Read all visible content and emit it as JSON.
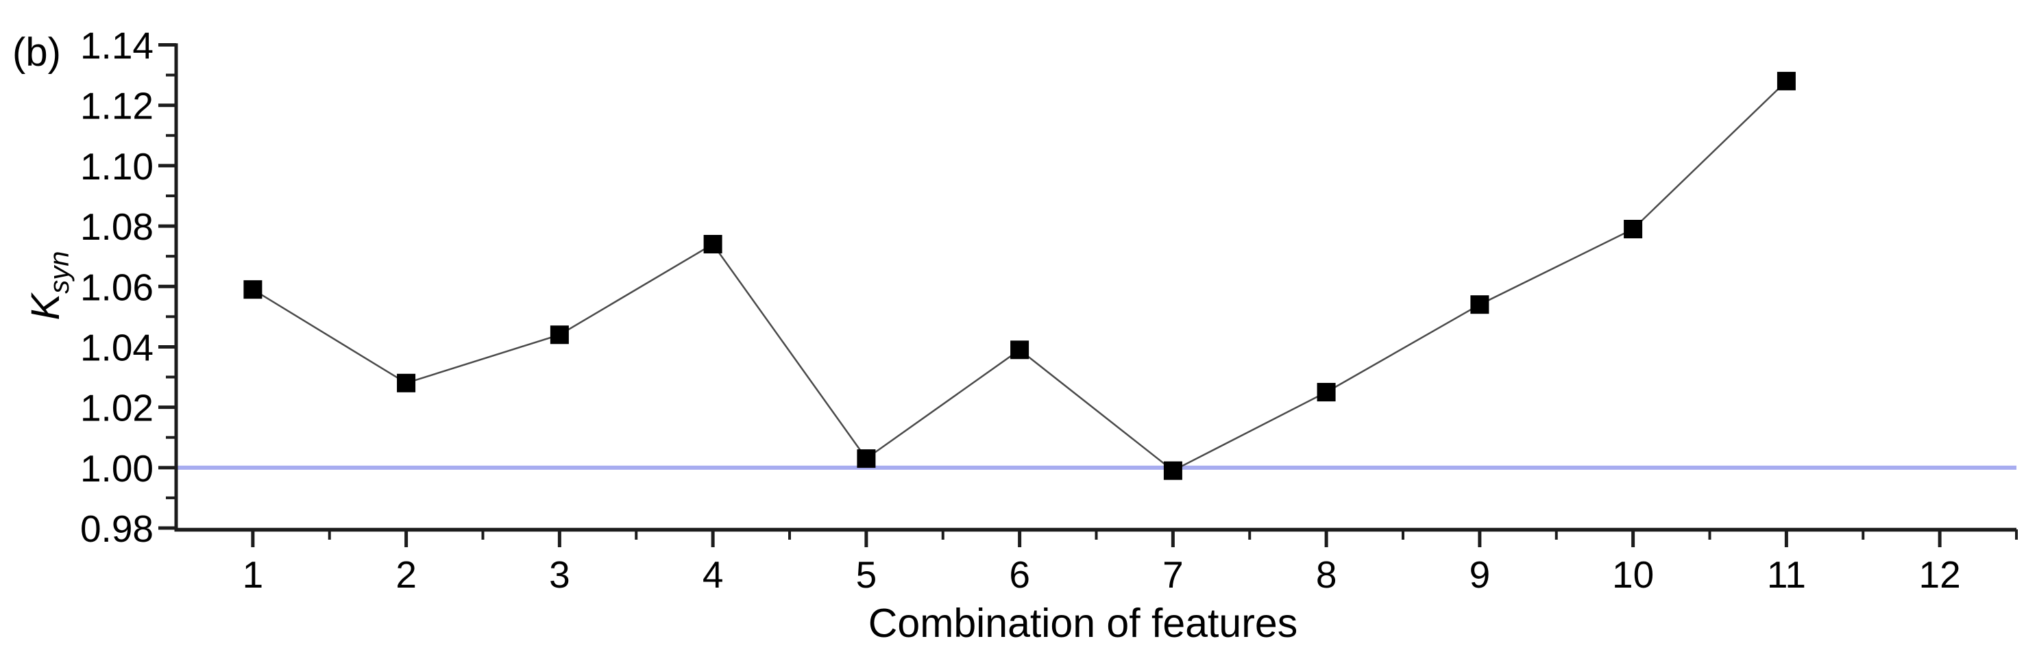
{
  "figure": {
    "panel_label": "(b)",
    "background": "#ffffff"
  },
  "chart_data": {
    "type": "line",
    "title": "",
    "xlabel": "Combination of features",
    "ylabel_main": "K",
    "ylabel_sub": "syn",
    "x": [
      1,
      2,
      3,
      4,
      5,
      6,
      7,
      8,
      9,
      10,
      11
    ],
    "values": [
      1.059,
      1.028,
      1.044,
      1.074,
      1.003,
      1.039,
      0.999,
      1.025,
      1.054,
      1.079,
      1.128
    ],
    "xlim": [
      0.5,
      12.5
    ],
    "ylim": [
      0.98,
      1.1405
    ],
    "x_major_ticks": [
      1,
      2,
      3,
      4,
      5,
      6,
      7,
      8,
      9,
      10,
      11,
      12
    ],
    "x_minor_ticks": [
      1.5,
      2.5,
      3.5,
      4.5,
      5.5,
      6.5,
      7.5,
      8.5,
      9.5,
      10.5,
      11.5,
      12.5
    ],
    "y_major_ticks": [
      0.98,
      1.0,
      1.02,
      1.04,
      1.06,
      1.08,
      1.1,
      1.12,
      1.14
    ],
    "y_minor_ticks": [
      0.99,
      1.01,
      1.03,
      1.05,
      1.07,
      1.09,
      1.11,
      1.13
    ],
    "y_tick_decimals": 2,
    "grid": false,
    "legend": "none",
    "reference_line": {
      "y": 1.0,
      "color": "#a7acf0",
      "width": 6
    },
    "line": {
      "color": "#4a4a4a",
      "width": 2.5
    },
    "marker": {
      "shape": "square",
      "fill": "#000000",
      "size": 27
    },
    "axis_color": "#1c1c1c"
  }
}
